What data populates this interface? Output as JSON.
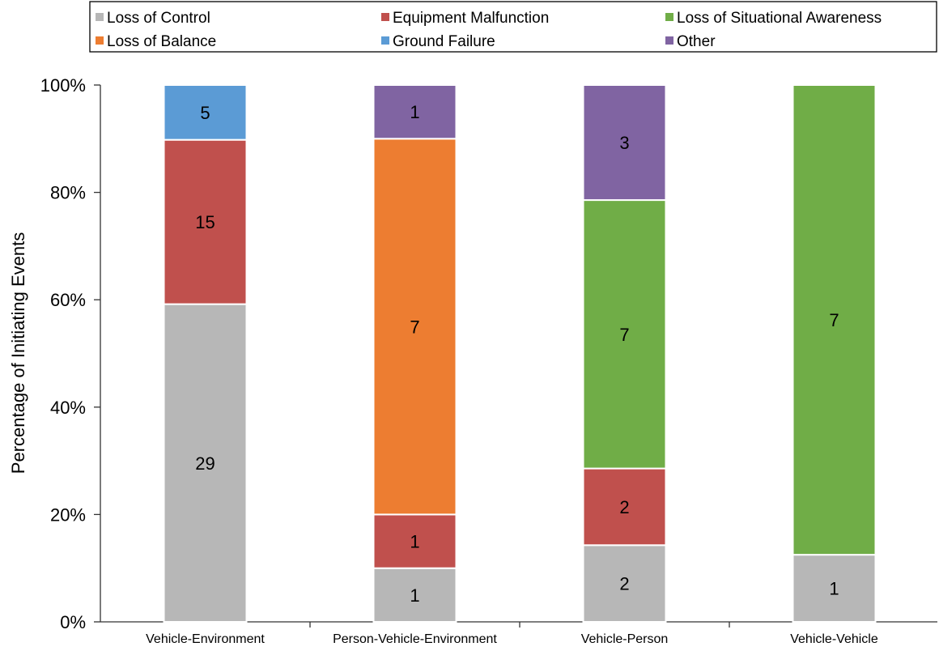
{
  "chart_data": {
    "type": "bar",
    "stacked": "percent",
    "ylabel": "Percentage of Initiating Events",
    "ylim": [
      0,
      100
    ],
    "y_ticks": [
      "0%",
      "20%",
      "40%",
      "60%",
      "80%",
      "100%"
    ],
    "grid": false,
    "legend_position": "top",
    "categories": [
      "Vehicle-Environment",
      "Person-Vehicle-Environment",
      "Vehicle-Person",
      "Vehicle-Vehicle"
    ],
    "series": [
      {
        "name": "Loss of Control",
        "color": "#b7b7b7",
        "values": [
          29,
          1,
          2,
          1
        ]
      },
      {
        "name": "Equipment Malfunction",
        "color": "#c0504d",
        "values": [
          15,
          1,
          2,
          0
        ]
      },
      {
        "name": "Loss of Balance",
        "color": "#ed7d31",
        "values": [
          0,
          7,
          0,
          0
        ]
      },
      {
        "name": "Ground Failure",
        "color": "#5b9bd5",
        "values": [
          5,
          0,
          0,
          0
        ]
      },
      {
        "name": "Loss of Situational Awareness",
        "color": "#70ad47",
        "values": [
          0,
          0,
          7,
          7
        ]
      },
      {
        "name": "Other",
        "color": "#8064a2",
        "values": [
          0,
          1,
          3,
          0
        ]
      }
    ],
    "legend_order": [
      "Loss of Control",
      "Equipment Malfunction",
      "Loss of Situational Awareness",
      "Loss of Balance",
      "Ground Failure",
      "Other"
    ]
  }
}
